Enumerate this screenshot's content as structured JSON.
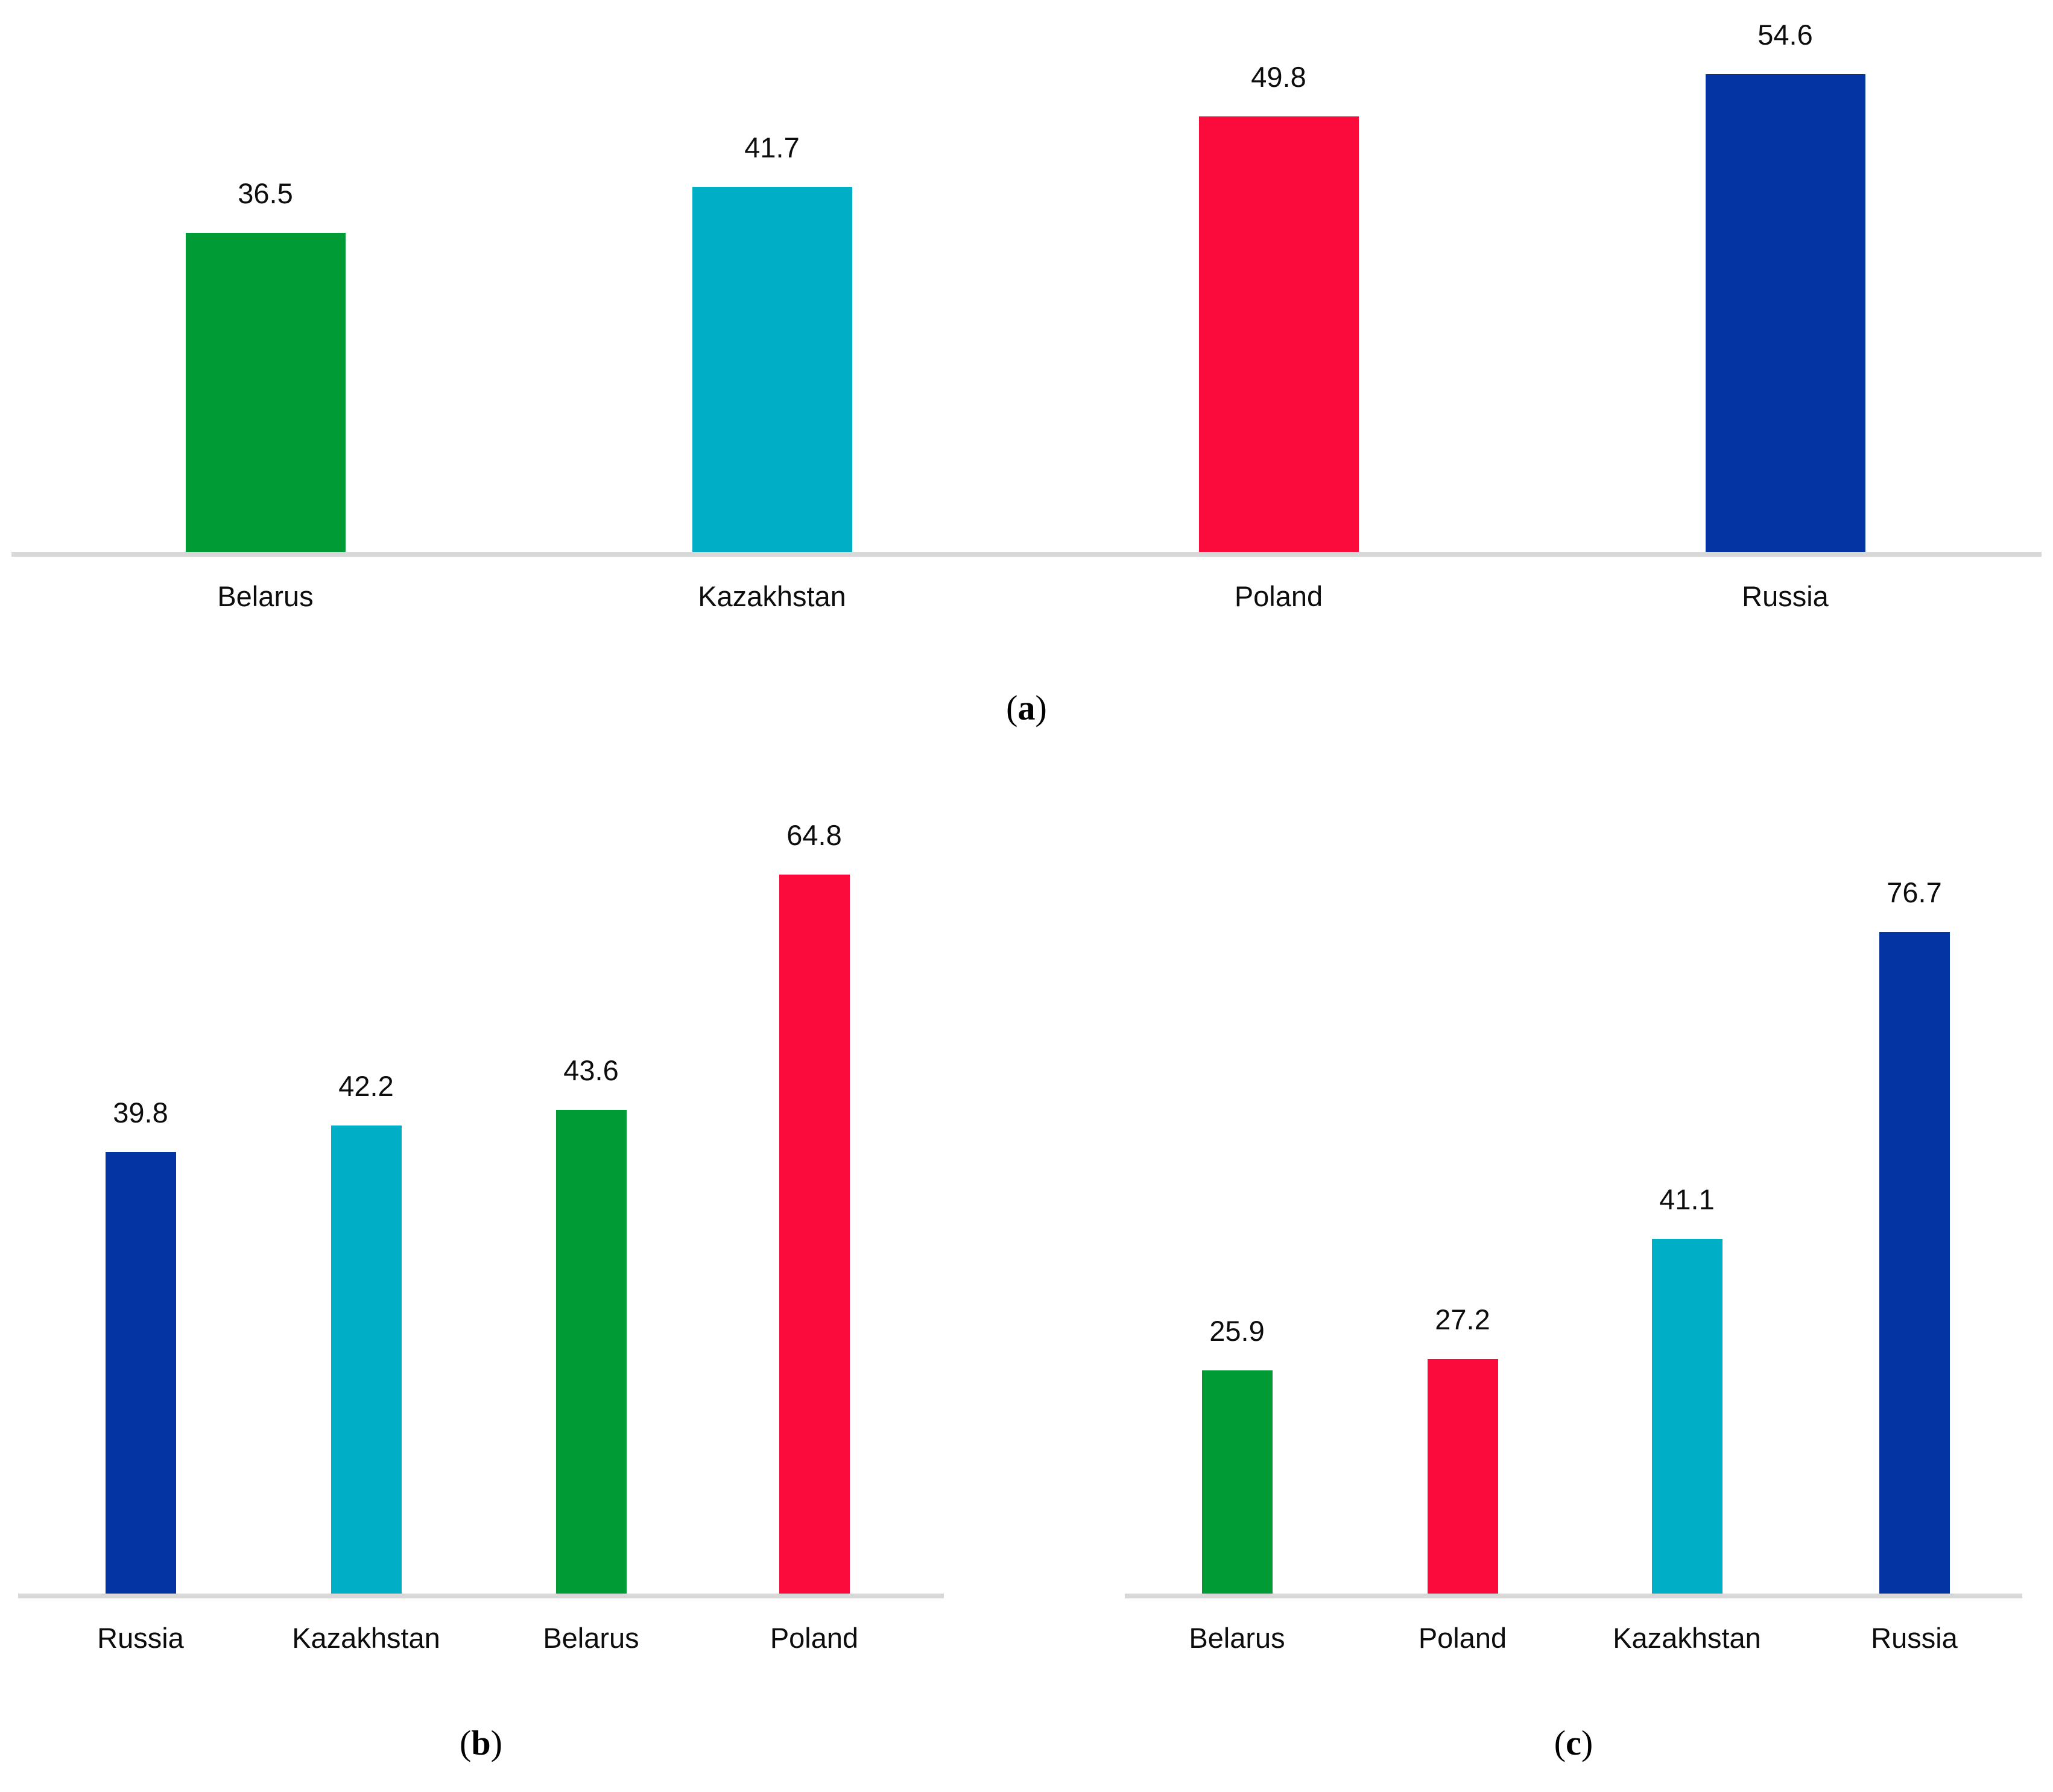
{
  "figure": {
    "background": "#ffffff",
    "axis_color": "#D8D8D8",
    "country_colors": {
      "Belarus": "#009B35",
      "Kazakhstan": "#00AEC6",
      "Poland": "#FB0B3C",
      "Russia": "#0434A3"
    }
  },
  "chart_data": [
    {
      "type": "bar",
      "caption": {
        "open": "(",
        "letter": "a",
        "close": ")"
      },
      "categories": [
        "Belarus",
        "Kazakhstan",
        "Poland",
        "Russia"
      ],
      "values": [
        36.5,
        41.7,
        49.8,
        54.6
      ],
      "colors": [
        "#009B35",
        "#00AEC6",
        "#FB0B3C",
        "#0434A3"
      ],
      "value_labels": true,
      "grid": false,
      "legend": "none",
      "ylim": [
        0,
        63
      ]
    },
    {
      "type": "bar",
      "caption": {
        "open": "(",
        "letter": "b",
        "close": ")"
      },
      "categories": [
        "Russia",
        "Kazakhstan",
        "Belarus",
        "Poland"
      ],
      "values": [
        39.8,
        42.2,
        43.6,
        64.8
      ],
      "colors": [
        "#0434A3",
        "#00AEC6",
        "#009B35",
        "#FB0B3C"
      ],
      "value_labels": true,
      "grid": false,
      "legend": "none",
      "ylim": [
        0,
        73
      ]
    },
    {
      "type": "bar",
      "caption": {
        "open": "(",
        "letter": "c",
        "close": ")"
      },
      "categories": [
        "Belarus",
        "Poland",
        "Kazakhstan",
        "Russia"
      ],
      "values": [
        25.9,
        27.2,
        41.1,
        76.7
      ],
      "colors": [
        "#009B35",
        "#FB0B3C",
        "#00AEC6",
        "#0434A3"
      ],
      "value_labels": true,
      "grid": false,
      "legend": "none",
      "ylim": [
        0,
        94
      ]
    }
  ]
}
